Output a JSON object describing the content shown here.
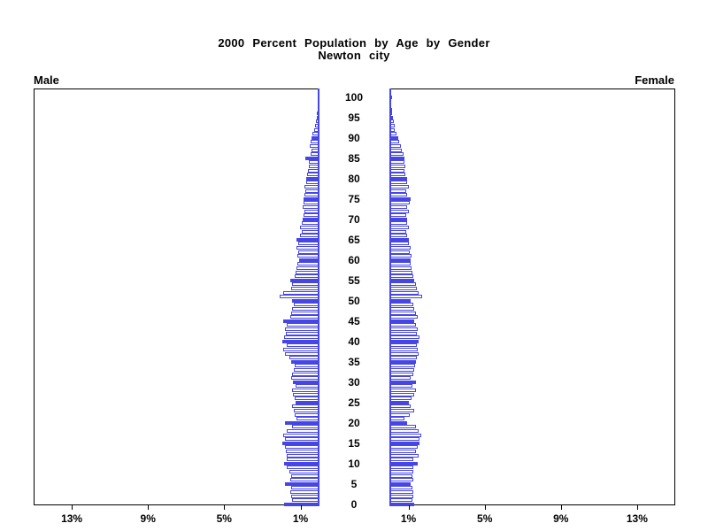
{
  "chart_data": {
    "type": "bar",
    "variant": "population-pyramid",
    "title": "2000 Percent Population by Age by Gender",
    "subtitle": "Newton city",
    "left_label": "Male",
    "right_label": "Female",
    "age_axis": {
      "min": 0,
      "max": 100,
      "tick_interval": 5,
      "tick_labels": [
        "0",
        "5",
        "10",
        "15",
        "20",
        "25",
        "30",
        "35",
        "40",
        "45",
        "50",
        "55",
        "60",
        "65",
        "70",
        "75",
        "80",
        "85",
        "90",
        "95",
        "100"
      ]
    },
    "pct_axis": {
      "min": 0,
      "max": 15,
      "ticks": [
        1,
        5,
        9,
        13
      ],
      "tick_labels": [
        "1%",
        "5%",
        "9%",
        "13%"
      ]
    },
    "bar_unit_years": 1,
    "highlight_every": 5,
    "legend": "none",
    "grid": false,
    "colors": {
      "bar_outline": "#4646e6",
      "bar_fill_default": "#ffffff",
      "bar_fill_highlight": "#4646e6",
      "center_axis": "#4646e6",
      "frame": "#000000",
      "text": "#000000"
    },
    "series": [
      {
        "name": "Male",
        "side": "left",
        "values": [
          1.85,
          1.45,
          1.5,
          1.55,
          1.5,
          1.8,
          1.55,
          1.5,
          1.6,
          1.7,
          1.85,
          1.72,
          1.7,
          1.75,
          1.8,
          1.95,
          1.8,
          1.9,
          1.7,
          1.45,
          1.8,
          1.2,
          1.3,
          1.35,
          1.45,
          1.25,
          1.3,
          1.4,
          1.45,
          1.25,
          1.4,
          1.5,
          1.45,
          1.35,
          1.3,
          1.5,
          1.6,
          1.8,
          1.9,
          1.7,
          1.95,
          1.85,
          1.75,
          1.8,
          1.7,
          1.9,
          1.55,
          1.5,
          1.45,
          1.35,
          1.45,
          2.1,
          1.9,
          1.5,
          1.45,
          1.55,
          1.3,
          1.25,
          1.2,
          1.15,
          1.05,
          1.15,
          1.1,
          1.2,
          1.1,
          1.2,
          1.0,
          0.95,
          1.0,
          0.95,
          0.9,
          0.85,
          0.8,
          0.9,
          0.85,
          0.85,
          0.8,
          0.75,
          0.8,
          0.7,
          0.7,
          0.65,
          0.6,
          0.55,
          0.55,
          0.75,
          0.45,
          0.4,
          0.5,
          0.45,
          0.4,
          0.35,
          0.3,
          0.25,
          0.2,
          0.15,
          0.12,
          0.1,
          0.08,
          0.05,
          0.05
        ]
      },
      {
        "name": "Female",
        "side": "right",
        "values": [
          1.3,
          1.2,
          1.25,
          1.25,
          1.2,
          1.1,
          1.25,
          1.2,
          1.25,
          1.25,
          1.5,
          1.25,
          1.55,
          1.4,
          1.5,
          1.6,
          1.6,
          1.65,
          1.55,
          1.4,
          0.95,
          0.8,
          1.05,
          1.3,
          1.1,
          1.0,
          1.15,
          1.3,
          1.4,
          1.2,
          1.4,
          1.1,
          1.25,
          1.3,
          1.35,
          1.4,
          1.45,
          1.55,
          1.5,
          1.45,
          1.55,
          1.6,
          1.45,
          1.5,
          1.4,
          1.3,
          1.5,
          1.4,
          1.3,
          1.25,
          1.1,
          1.7,
          1.55,
          1.45,
          1.4,
          1.3,
          1.25,
          1.2,
          1.15,
          1.1,
          1.1,
          1.15,
          1.05,
          1.1,
          1.0,
          1.0,
          0.95,
          0.9,
          1.0,
          0.95,
          0.95,
          0.9,
          1.0,
          0.95,
          1.05,
          1.1,
          0.95,
          0.9,
          1.0,
          0.95,
          0.95,
          0.85,
          0.8,
          0.85,
          0.8,
          0.8,
          0.75,
          0.65,
          0.6,
          0.5,
          0.45,
          0.35,
          0.3,
          0.28,
          0.25,
          0.2,
          0.15,
          0.12,
          0.1,
          0.08,
          0.15
        ]
      }
    ]
  }
}
